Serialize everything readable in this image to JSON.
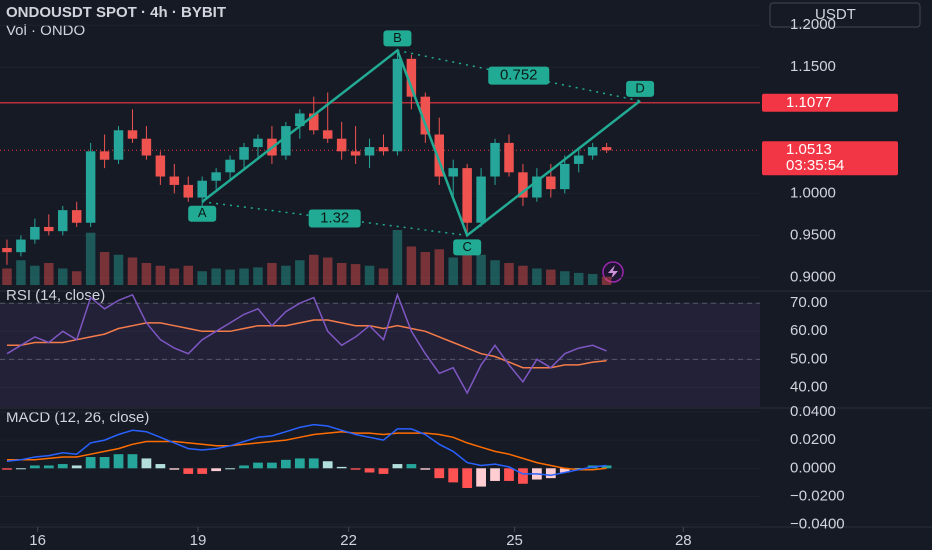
{
  "chart_data": [
    {
      "type": "candlestick",
      "title": "ONDOUSDT SPOT · 4h · BYBIT",
      "subtitle": "Vol · ONDO",
      "currency": "USDT",
      "x": [
        0,
        1,
        2,
        3,
        4,
        5,
        6,
        7,
        8,
        9,
        10,
        11,
        12,
        13,
        14,
        15,
        16,
        17,
        18,
        19,
        20,
        21,
        22,
        23,
        24,
        25,
        26,
        27,
        28,
        29,
        30,
        31,
        32,
        33,
        34,
        35,
        36,
        37,
        38,
        39,
        40,
        41,
        42,
        43
      ],
      "open": [
        0.935,
        0.93,
        0.945,
        0.96,
        0.955,
        0.98,
        0.965,
        1.05,
        1.04,
        1.075,
        1.065,
        1.045,
        1.02,
        1.01,
        0.995,
        1.015,
        1.025,
        1.04,
        1.055,
        1.065,
        1.045,
        1.08,
        1.095,
        1.075,
        1.065,
        1.05,
        1.045,
        1.055,
        1.05,
        1.16,
        1.115,
        1.07,
        1.02,
        1.03,
        0.965,
        1.02,
        1.06,
        1.025,
        0.995,
        1.02,
        1.005,
        1.035,
        1.045,
        1.055
      ],
      "high": [
        0.945,
        0.95,
        0.97,
        0.975,
        0.985,
        0.99,
        1.06,
        1.07,
        1.08,
        1.1,
        1.08,
        1.05,
        1.035,
        1.02,
        1.02,
        1.03,
        1.045,
        1.06,
        1.07,
        1.08,
        1.085,
        1.1,
        1.115,
        1.12,
        1.085,
        1.08,
        1.065,
        1.07,
        1.17,
        1.165,
        1.12,
        1.09,
        1.04,
        1.035,
        1.03,
        1.065,
        1.07,
        1.035,
        1.03,
        1.035,
        1.045,
        1.055,
        1.06,
        1.06
      ],
      "low": [
        0.915,
        0.925,
        0.94,
        0.95,
        0.95,
        0.96,
        0.96,
        1.03,
        1.035,
        1.06,
        1.04,
        1.01,
        1.0,
        0.99,
        0.985,
        1.005,
        1.015,
        1.03,
        1.04,
        1.035,
        1.04,
        1.065,
        1.07,
        1.06,
        1.04,
        1.035,
        1.03,
        1.045,
        1.045,
        1.1,
        1.06,
        1.01,
        0.99,
        0.95,
        0.96,
        1.01,
        1.02,
        0.985,
        0.99,
        0.995,
        1.0,
        1.025,
        1.04,
        1.048
      ],
      "close": [
        0.93,
        0.945,
        0.96,
        0.955,
        0.98,
        0.965,
        1.05,
        1.04,
        1.075,
        1.065,
        1.045,
        1.02,
        1.01,
        0.995,
        1.015,
        1.025,
        1.04,
        1.055,
        1.065,
        1.045,
        1.08,
        1.095,
        1.075,
        1.065,
        1.05,
        1.045,
        1.055,
        1.05,
        1.16,
        1.115,
        1.07,
        1.02,
        1.03,
        0.965,
        1.02,
        1.06,
        1.025,
        0.995,
        1.02,
        1.005,
        1.035,
        1.045,
        1.055,
        1.0513
      ],
      "volume": [
        30,
        45,
        35,
        40,
        30,
        25,
        95,
        60,
        55,
        50,
        40,
        35,
        30,
        35,
        25,
        30,
        28,
        30,
        32,
        40,
        35,
        45,
        55,
        50,
        40,
        38,
        35,
        30,
        100,
        70,
        60,
        65,
        50,
        80,
        55,
        45,
        40,
        35,
        30,
        28,
        25,
        22,
        20,
        15
      ],
      "up_color": "#26a69a",
      "down_color": "#ef5350",
      "xlim": [
        -0.5,
        54
      ],
      "xticks": [
        {
          "value": 2.2,
          "label": "16"
        },
        {
          "value": 13.7,
          "label": "19"
        },
        {
          "value": 24.5,
          "label": "22"
        },
        {
          "value": 36.4,
          "label": "25"
        },
        {
          "value": 48.5,
          "label": "28"
        }
      ],
      "ylim": [
        0.885,
        1.23
      ],
      "yticks": [
        {
          "value": 1.2,
          "label": "1.2000"
        },
        {
          "value": 1.15,
          "label": "1.1500"
        },
        {
          "value": 1.0,
          "label": "1.0000"
        },
        {
          "value": 0.95,
          "label": "0.9500"
        },
        {
          "value": 0.9,
          "label": "0.9000"
        }
      ],
      "lines": [
        {
          "value": 1.1077,
          "color": "#f23645"
        }
      ],
      "last_price": {
        "value": 1.0513,
        "countdown": "03:35:54",
        "color": "#f23645"
      },
      "pattern": {
        "color": "#22ab94",
        "points": [
          {
            "label": "A",
            "x": 14,
            "y": 0.99
          },
          {
            "label": "B",
            "x": 28,
            "y": 1.17
          },
          {
            "label": "C",
            "x": 33,
            "y": 0.95
          },
          {
            "label": "D",
            "x": 45.4,
            "y": 1.11
          }
        ],
        "ratios": [
          1.32,
          0.752
        ]
      }
    },
    {
      "type": "line",
      "title": "RSI (14, close)",
      "series": [
        {
          "color": "#7e57c2",
          "values": [
            52,
            55,
            58,
            56,
            60,
            57,
            72,
            68,
            71,
            73,
            63,
            57,
            54,
            52,
            57,
            60,
            63,
            66,
            68,
            62,
            67,
            70,
            72,
            60,
            55,
            58,
            62,
            57,
            73,
            60,
            52,
            45,
            47,
            38,
            48,
            55,
            48,
            42,
            50,
            47,
            52,
            54,
            55,
            53
          ]
        },
        {
          "color": "#f57c4a",
          "values": [
            55,
            55,
            56,
            56,
            56,
            57,
            58,
            59,
            61,
            62,
            63,
            63,
            62,
            61,
            60,
            60,
            60,
            61,
            62,
            62,
            62,
            63,
            64,
            64,
            63,
            62,
            62,
            61,
            62,
            61,
            60,
            58,
            56,
            54,
            52,
            51,
            49,
            47,
            47,
            47,
            48,
            48,
            49,
            49.5
          ]
        }
      ],
      "levels": [
        70,
        50
      ],
      "ylim": [
        33,
        74
      ],
      "yticks": [
        {
          "value": 70,
          "label": "70.00"
        },
        {
          "value": 60,
          "label": "60.00"
        },
        {
          "value": 50,
          "label": "50.00"
        },
        {
          "value": 40,
          "label": "40.00"
        }
      ]
    },
    {
      "type": "macd",
      "title": "MACD (12, 26, close)",
      "macd": {
        "color": "#2962ff",
        "values": [
          0.005,
          0.006,
          0.008,
          0.009,
          0.011,
          0.01,
          0.018,
          0.02,
          0.024,
          0.027,
          0.026,
          0.022,
          0.018,
          0.014,
          0.013,
          0.014,
          0.016,
          0.019,
          0.022,
          0.023,
          0.026,
          0.029,
          0.031,
          0.03,
          0.027,
          0.024,
          0.022,
          0.02,
          0.028,
          0.028,
          0.024,
          0.017,
          0.012,
          0.004,
          0.002,
          0.003,
          0.001,
          -0.004,
          -0.004,
          -0.005,
          -0.003,
          -0.001,
          0.001,
          0.002
        ]
      },
      "signal": {
        "color": "#ff6d00",
        "values": [
          0.006,
          0.006,
          0.006,
          0.007,
          0.008,
          0.008,
          0.01,
          0.012,
          0.014,
          0.017,
          0.019,
          0.019,
          0.019,
          0.018,
          0.017,
          0.016,
          0.016,
          0.017,
          0.018,
          0.019,
          0.02,
          0.022,
          0.024,
          0.025,
          0.026,
          0.025,
          0.025,
          0.024,
          0.025,
          0.025,
          0.025,
          0.024,
          0.022,
          0.018,
          0.015,
          0.012,
          0.01,
          0.007,
          0.004,
          0.002,
          0,
          -0.001,
          -0.001,
          0
        ]
      },
      "histogram": [
        -0.001,
        0,
        0.002,
        0.002,
        0.003,
        0.002,
        0.008,
        0.008,
        0.01,
        0.01,
        0.007,
        0.003,
        -0.001,
        -0.004,
        -0.004,
        -0.002,
        0,
        0.002,
        0.004,
        0.004,
        0.006,
        0.007,
        0.007,
        0.005,
        0.001,
        -0.001,
        -0.003,
        -0.004,
        0.003,
        0.003,
        -0.001,
        -0.007,
        -0.01,
        -0.014,
        -0.013,
        -0.009,
        -0.009,
        -0.011,
        -0.008,
        -0.007,
        -0.003,
        0,
        0.002,
        0.002
      ],
      "hist_colors": [
        "#26a69a",
        "#b2dfdb",
        "#ff5252",
        "#ffcdd2"
      ],
      "ylim": [
        -0.0417,
        0.0421
      ],
      "yticks": [
        {
          "value": 0.04,
          "label": "0.0400"
        },
        {
          "value": 0.02,
          "label": "0.0200"
        },
        {
          "value": 0,
          "label": "0.0000"
        },
        {
          "value": -0.02,
          "label": "−0.0200"
        },
        {
          "value": -0.04,
          "label": "−0.0400"
        }
      ]
    }
  ]
}
